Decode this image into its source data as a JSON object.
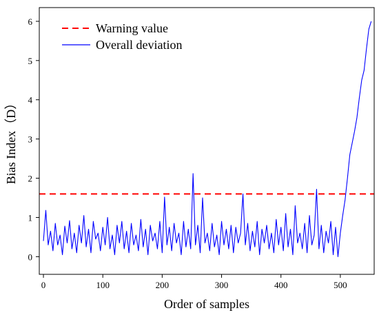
{
  "chart_data": {
    "type": "line",
    "xlabel": "Order of samples",
    "ylabel": "Bias Index（D）",
    "xlim": [
      -7,
      557
    ],
    "ylim": [
      -0.45,
      6.35
    ],
    "xticks": [
      0,
      100,
      200,
      300,
      400,
      500
    ],
    "yticks": [
      0,
      1,
      2,
      3,
      4,
      5,
      6
    ],
    "grid": false,
    "legend_position": "top-left",
    "series": [
      {
        "name": "Warning value",
        "style": "dashed",
        "color": "#ff0000",
        "x": [
          -7,
          557
        ],
        "y": [
          1.6,
          1.6
        ]
      },
      {
        "name": "Overall deviation",
        "style": "solid",
        "color": "#0000ff",
        "x": [
          0,
          4,
          8,
          12,
          16,
          20,
          24,
          28,
          32,
          36,
          40,
          44,
          48,
          52,
          56,
          60,
          64,
          68,
          72,
          76,
          80,
          84,
          88,
          92,
          96,
          100,
          104,
          108,
          112,
          116,
          120,
          124,
          128,
          132,
          136,
          140,
          144,
          148,
          152,
          156,
          160,
          164,
          168,
          172,
          176,
          180,
          184,
          188,
          192,
          196,
          200,
          204,
          208,
          212,
          216,
          220,
          224,
          228,
          232,
          236,
          240,
          244,
          248,
          252,
          256,
          260,
          264,
          268,
          272,
          276,
          280,
          284,
          288,
          292,
          296,
          300,
          304,
          308,
          312,
          316,
          320,
          324,
          328,
          332,
          336,
          340,
          344,
          348,
          352,
          356,
          360,
          364,
          368,
          372,
          376,
          380,
          384,
          388,
          392,
          396,
          400,
          404,
          408,
          412,
          416,
          420,
          424,
          428,
          432,
          436,
          440,
          444,
          448,
          452,
          456,
          460,
          464,
          468,
          472,
          476,
          480,
          484,
          488,
          492,
          496,
          500,
          504,
          508,
          512,
          516,
          520,
          524,
          528,
          532,
          536,
          540,
          544,
          548,
          552
        ],
        "y": [
          0.4,
          1.18,
          0.3,
          0.65,
          0.15,
          0.85,
          0.3,
          0.55,
          0.05,
          0.78,
          0.35,
          0.92,
          0.2,
          0.6,
          0.1,
          0.8,
          0.35,
          1.05,
          0.25,
          0.7,
          0.1,
          0.9,
          0.45,
          0.6,
          0.15,
          0.75,
          0.3,
          1.0,
          0.2,
          0.55,
          0.05,
          0.8,
          0.35,
          0.9,
          0.2,
          0.65,
          0.1,
          0.85,
          0.3,
          0.55,
          0.15,
          0.95,
          0.25,
          0.7,
          0.05,
          0.8,
          0.4,
          0.6,
          0.2,
          0.9,
          0.1,
          1.52,
          0.3,
          0.75,
          0.15,
          0.85,
          0.35,
          0.6,
          0.05,
          0.9,
          0.25,
          0.7,
          0.2,
          2.12,
          0.3,
          0.8,
          0.1,
          1.5,
          0.35,
          0.6,
          0.15,
          0.85,
          0.25,
          0.55,
          0.05,
          0.9,
          0.3,
          0.7,
          0.2,
          0.8,
          0.1,
          0.75,
          0.35,
          0.6,
          1.6,
          0.3,
          0.85,
          0.15,
          0.65,
          0.25,
          0.9,
          0.05,
          0.7,
          0.35,
          0.8,
          0.2,
          0.6,
          0.1,
          0.95,
          0.3,
          0.75,
          0.15,
          1.1,
          0.25,
          0.7,
          0.05,
          1.3,
          0.35,
          0.6,
          0.2,
          0.85,
          0.1,
          1.05,
          0.3,
          0.55,
          1.72,
          0.2,
          0.8,
          0.1,
          0.65,
          0.35,
          0.9,
          0.05,
          0.75,
          0.0,
          0.6,
          1.05,
          1.45,
          2.0,
          2.6,
          2.9,
          3.2,
          3.55,
          4.05,
          4.5,
          4.75,
          5.3,
          5.8,
          6.0
        ]
      }
    ]
  }
}
